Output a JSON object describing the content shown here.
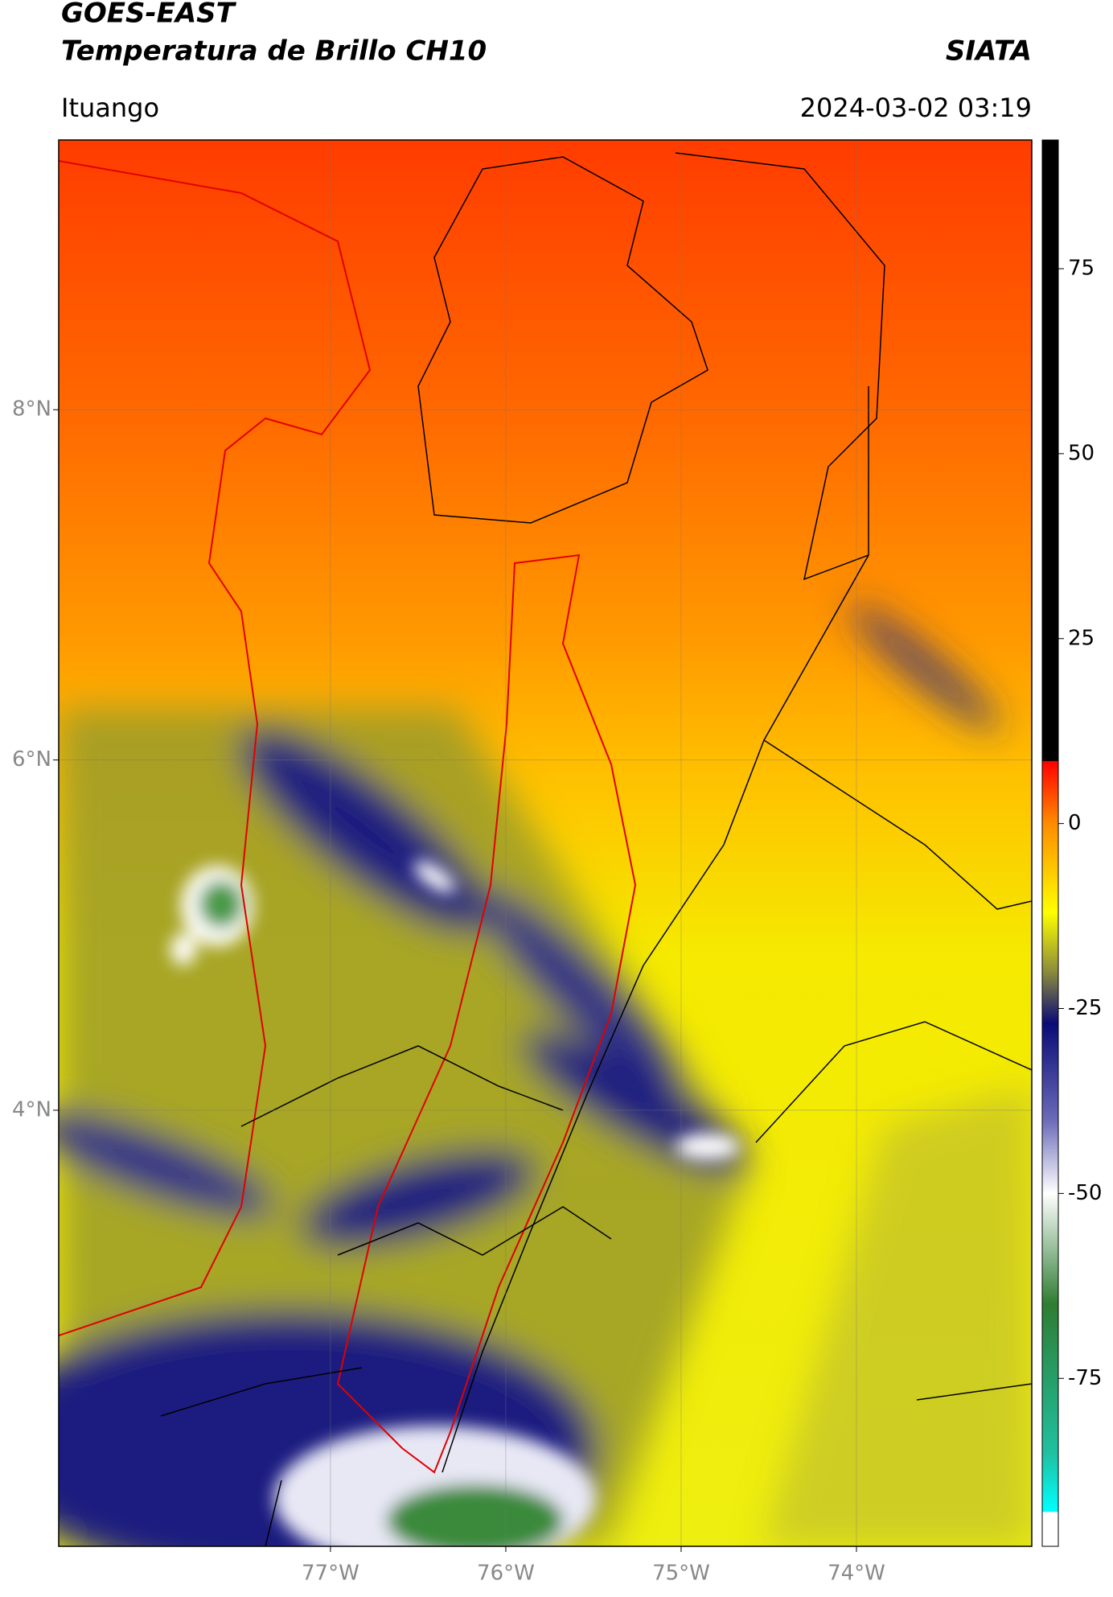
{
  "header": {
    "title": "GOES-EAST",
    "subtitle": "Temperatura de Brillo CH10",
    "brand": "SIATA",
    "location": "Ituango",
    "datetime": "2024-03-02 03:19"
  },
  "map": {
    "lonlim": [
      -78.55,
      -73.0
    ],
    "latlim": [
      1.51,
      9.54
    ],
    "lonticks": [
      {
        "value": -77,
        "label": "77°W"
      },
      {
        "value": -76,
        "label": "76°W"
      },
      {
        "value": -75,
        "label": "75°W"
      },
      {
        "value": -74,
        "label": "74°W"
      }
    ],
    "latticks": [
      {
        "value": 8,
        "label": "8°N"
      },
      {
        "value": 6,
        "label": "6°N"
      },
      {
        "value": 4,
        "label": "4°N"
      }
    ]
  },
  "colorbar": {
    "lim": [
      -97.7,
      92.4
    ],
    "ticks": [
      75,
      50,
      25,
      0,
      -25,
      -50,
      -75
    ],
    "stops": [
      {
        "value": 92.4,
        "color": "#000000"
      },
      {
        "value": 8.5,
        "color": "#000000"
      },
      {
        "value": 8.4,
        "color": "#ff0000"
      },
      {
        "value": 0,
        "color": "#ff8c00"
      },
      {
        "value": -12,
        "color": "#ffff00"
      },
      {
        "value": -20,
        "color": "#8c8c3c"
      },
      {
        "value": -27,
        "color": "#0a0a78"
      },
      {
        "value": -40,
        "color": "#6a6ab8"
      },
      {
        "value": -50,
        "color": "#ffffff"
      },
      {
        "value": -65,
        "color": "#2e7d32"
      },
      {
        "value": -85,
        "color": "#20c0a0"
      },
      {
        "value": -93,
        "color": "#00ffff"
      },
      {
        "value": -93.1,
        "color": "#ffffff"
      },
      {
        "value": -97.7,
        "color": "#ffffff"
      }
    ]
  }
}
